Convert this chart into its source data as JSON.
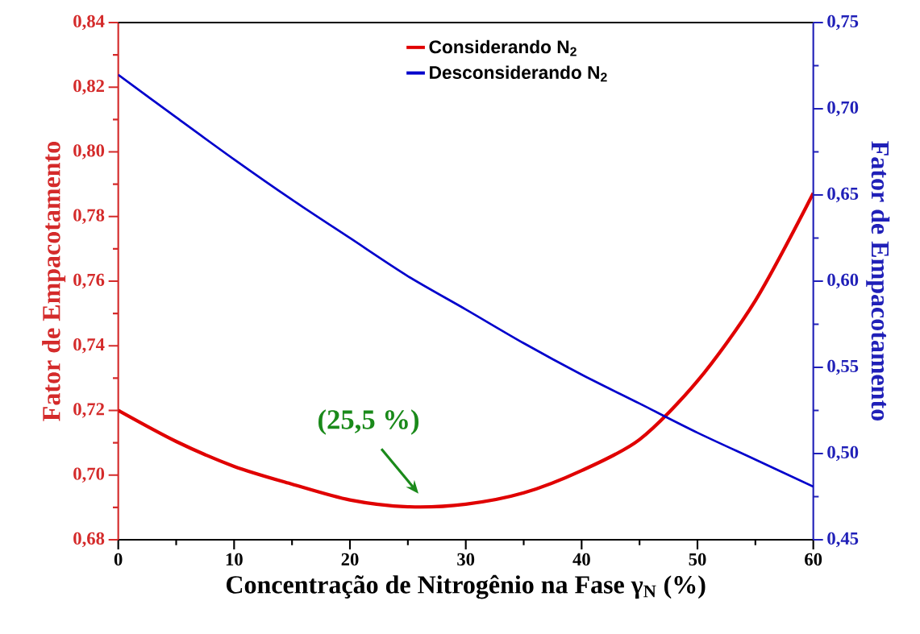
{
  "chart_data": {
    "type": "line",
    "xlabel": "Concentração de Nitrogênio na Fase γ$_{N}$ (%)",
    "ylabel": "Fator de Empacotamento",
    "y2label": "Fator de Empacotamento",
    "x": [
      0,
      5,
      10,
      15,
      20,
      25,
      30,
      35,
      40,
      45,
      50,
      55,
      60
    ],
    "series": [
      {
        "name": "Considerando N$_{2}$",
        "color": "#e00000",
        "values": [
          0.72,
          0.7104,
          0.7027,
          0.6972,
          0.6923,
          0.6902,
          0.691,
          0.6945,
          0.7014,
          0.711,
          0.7291,
          0.754,
          0.7872
        ]
      },
      {
        "name": "Desconsiderando N$_{2}$",
        "color": "#0000cc",
        "axis": "y2",
        "values": [
          0.7197,
          0.695,
          0.6706,
          0.6472,
          0.625,
          0.6029,
          0.5836,
          0.564,
          0.5458,
          0.529,
          0.5121,
          0.4965,
          0.4808
        ]
      }
    ],
    "xlim": [
      0,
      60
    ],
    "xticks": [
      0,
      10,
      20,
      30,
      40,
      50,
      60
    ],
    "ylim": [
      0.68,
      0.84
    ],
    "yticks": [
      {
        "value": 0.68,
        "label": "0,68"
      },
      {
        "value": 0.7,
        "label": "0,70"
      },
      {
        "value": 0.72,
        "label": "0,72"
      },
      {
        "value": 0.74,
        "label": "0,74"
      },
      {
        "value": 0.76,
        "label": "0,76"
      },
      {
        "value": 0.78,
        "label": "0,78"
      },
      {
        "value": 0.8,
        "label": "0,80"
      },
      {
        "value": 0.82,
        "label": "0,82"
      },
      {
        "value": 0.84,
        "label": "0,84"
      }
    ],
    "y2lim": [
      0.45,
      0.75
    ],
    "y2ticks": [
      {
        "value": 0.45,
        "label": "0,45"
      },
      {
        "value": 0.5,
        "label": "0,50"
      },
      {
        "value": 0.55,
        "label": "0,55"
      },
      {
        "value": 0.6,
        "label": "0,60"
      },
      {
        "value": 0.65,
        "label": "0,65"
      },
      {
        "value": 0.7,
        "label": "0,70"
      },
      {
        "value": 0.75,
        "label": "0,75"
      }
    ],
    "annotations": [
      {
        "text": "(25,5 %)",
        "x": 25.5,
        "y": 0.6898
      }
    ],
    "legend": "top",
    "line_style": "solid",
    "marker": "none"
  }
}
